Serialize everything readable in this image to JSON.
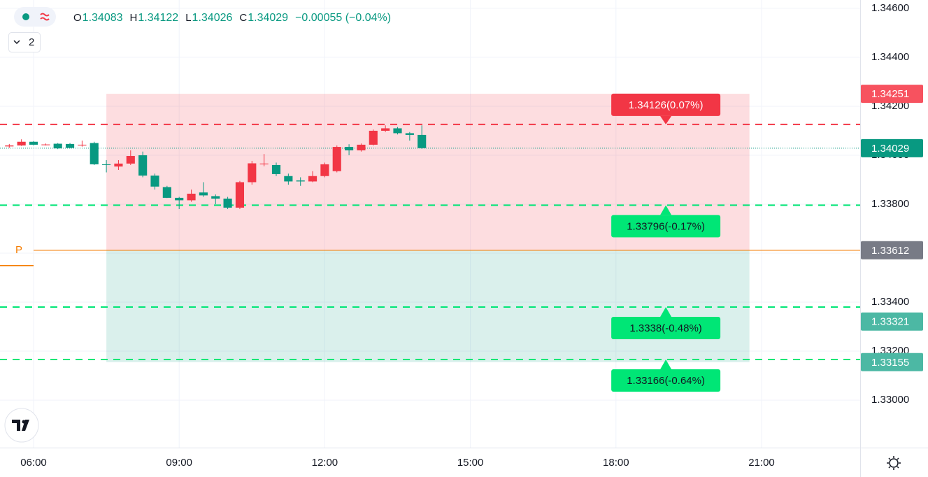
{
  "chart_data": {
    "type": "candlestick",
    "header": [
      {
        "label": "O",
        "value": "1.34083"
      },
      {
        "label": "H",
        "value": "1.34122"
      },
      {
        "label": "L",
        "value": "1.34026"
      },
      {
        "label": "C",
        "value": "1.34029"
      },
      {
        "label": "",
        "value": "−0.00055 (−0.04%)"
      }
    ],
    "header_color": "#089981",
    "indicator_count": "2",
    "x": [
      5.5,
      5.75,
      6,
      6.25,
      6.5,
      6.75,
      7,
      7.25,
      7.5,
      7.75,
      8,
      8.25,
      8.5,
      8.75,
      9,
      9.25,
      9.5,
      9.75,
      10,
      10.25,
      10.5,
      10.75,
      11,
      11.25,
      11.5,
      11.75,
      12,
      12.25,
      12.5,
      12.75,
      13,
      13.25,
      13.5,
      13.75,
      14
    ],
    "open": [
      1.34036,
      1.3404,
      1.34055,
      1.34043,
      1.34047,
      1.34046,
      1.3404,
      1.3405,
      1.33963,
      1.33954,
      1.33966,
      1.34,
      1.33917,
      1.3387,
      1.33826,
      1.33816,
      1.33848,
      1.33833,
      1.33823,
      1.33786,
      1.3389,
      1.33963,
      1.3396,
      1.33915,
      1.33897,
      1.33893,
      1.33915,
      1.33935,
      1.34034,
      1.3402,
      1.34043,
      1.341,
      1.3411,
      1.3409,
      1.34083
    ],
    "high": [
      1.34046,
      1.34065,
      1.34058,
      1.34048,
      1.3405,
      1.3405,
      1.3406,
      1.34055,
      1.3398,
      1.3398,
      1.3402,
      1.34015,
      1.33925,
      1.33875,
      1.3383,
      1.3386,
      1.3389,
      1.3384,
      1.3383,
      1.33895,
      1.33977,
      1.34005,
      1.3397,
      1.33925,
      1.3391,
      1.33935,
      1.3397,
      1.3404,
      1.34045,
      1.34048,
      1.34105,
      1.34122,
      1.34115,
      1.34095,
      1.34122
    ],
    "low": [
      1.3403,
      1.34038,
      1.3404,
      1.3404,
      1.34025,
      1.34028,
      1.34035,
      1.3396,
      1.3393,
      1.3394,
      1.3396,
      1.3391,
      1.3386,
      1.33825,
      1.3378,
      1.3381,
      1.3383,
      1.338,
      1.3378,
      1.3378,
      1.3388,
      1.33955,
      1.33915,
      1.3388,
      1.33875,
      1.3389,
      1.3391,
      1.3393,
      1.34,
      1.34015,
      1.3404,
      1.34095,
      1.34085,
      1.3406,
      1.34026
    ],
    "close": [
      1.3404,
      1.34055,
      1.34043,
      1.34044,
      1.34028,
      1.3403,
      1.34043,
      1.33963,
      1.3396,
      1.33966,
      1.33997,
      1.33917,
      1.33872,
      1.33826,
      1.33816,
      1.33843,
      1.33836,
      1.33823,
      1.33786,
      1.3389,
      1.33967,
      1.33966,
      1.33923,
      1.33893,
      1.33893,
      1.33915,
      1.33963,
      1.34034,
      1.3402,
      1.34043,
      1.341,
      1.3411,
      1.3409,
      1.34083,
      1.34029
    ],
    "up_color": "#f23645",
    "down_color": "#089981",
    "xlim": [
      5.3084,
      23.0317
    ],
    "ylim": [
      1.32806,
      1.34634
    ],
    "xticks": [
      {
        "value": 6,
        "label": "06:00"
      },
      {
        "value": 9,
        "label": "09:00"
      },
      {
        "value": 12,
        "label": "12:00"
      },
      {
        "value": 15,
        "label": "15:00"
      },
      {
        "value": 18,
        "label": "18:00"
      },
      {
        "value": 21,
        "label": "21:00"
      }
    ],
    "yticks": [
      {
        "value": 1.33,
        "label": "1.33000"
      },
      {
        "value": 1.332,
        "label": "1.33200"
      },
      {
        "value": 1.334,
        "label": "1.33400"
      },
      {
        "value": 1.336,
        "label": "1.33600"
      },
      {
        "value": 1.338,
        "label": "1.33800"
      },
      {
        "value": 1.34,
        "label": "1.34000"
      },
      {
        "value": 1.342,
        "label": "1.34200"
      },
      {
        "value": 1.344,
        "label": "1.34400"
      },
      {
        "value": 1.346,
        "label": "1.34600"
      }
    ],
    "grid": true,
    "position": {
      "label": "P",
      "entry": 1.33612,
      "stop": 1.34251,
      "target": 1.33155,
      "start": 7.5,
      "end": 20.75,
      "color": "#f57c00"
    },
    "levels": [
      {
        "value": 1.34126,
        "label": "1.34126(0.07%)",
        "color": "#f23645"
      },
      {
        "value": 1.33796,
        "label": "1.33796(-0.17%)",
        "color": "#00e676"
      },
      {
        "value": 1.3338,
        "label": "1.3338(-0.48%)",
        "color": "#00e676"
      },
      {
        "value": 1.33166,
        "label": "1.33166(-0.64%)",
        "color": "#00e676"
      }
    ],
    "price_labels": [
      {
        "value": 1.34251,
        "color": "#f7525f"
      },
      {
        "value": 1.34029,
        "color": "#089981"
      },
      {
        "value": 1.33612,
        "color": "#787b86"
      },
      {
        "value": 1.33321,
        "color": "#4cb8a4"
      },
      {
        "value": 1.33155,
        "color": "#4cb8a4"
      }
    ]
  }
}
